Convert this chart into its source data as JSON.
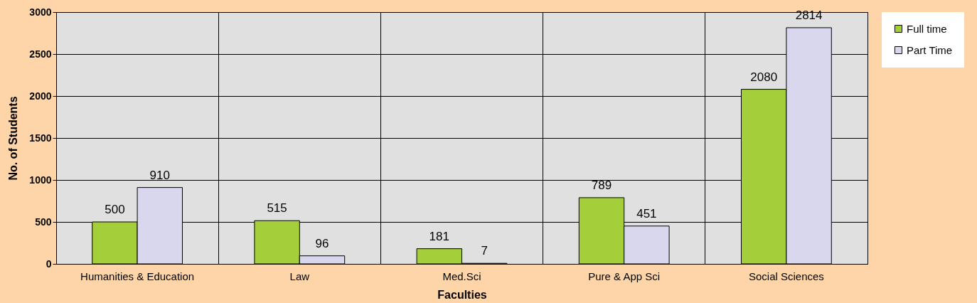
{
  "chart_data": {
    "type": "bar",
    "xlabel": "Faculties",
    "ylabel": "No. of Students",
    "categories": [
      "Humanities & Education",
      "Law",
      "Med.Sci",
      "Pure & App Sci",
      "Social Sciences"
    ],
    "series": [
      {
        "name": "Full time",
        "color": "#a4cf3a",
        "values": [
          500,
          515,
          181,
          789,
          2080
        ]
      },
      {
        "name": "Part Time",
        "color": "#d9d7ee",
        "values": [
          910,
          96,
          7,
          451,
          2814
        ]
      }
    ],
    "ylim": [
      0,
      3000
    ],
    "yticks": [
      0,
      500,
      1000,
      1500,
      2000,
      2500,
      3000
    ],
    "grid": true,
    "legend": "right",
    "data_labels": true
  }
}
